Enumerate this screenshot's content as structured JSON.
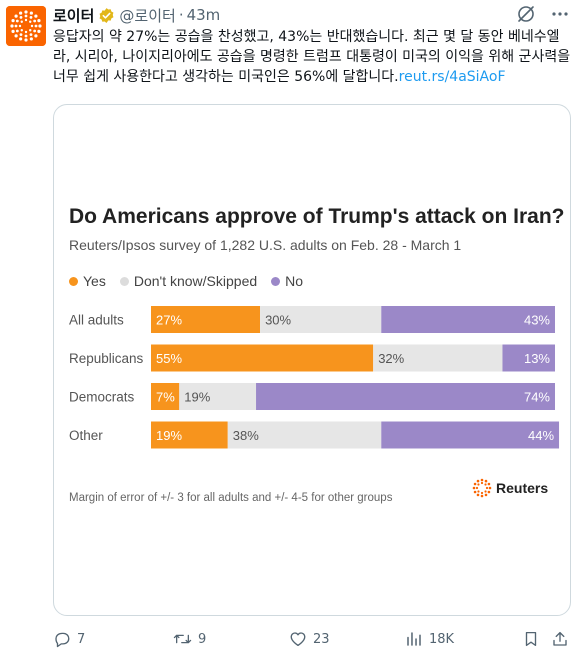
{
  "tweet": {
    "author_name": "로이터",
    "handle": "@로이터",
    "time": "43m",
    "text": "응답자의 약 27%는 공습을 찬성했고, 43%는 반대했습니다. 최근 몇 달 동안 베네수엘라, 시리아, 나이지리아에도 공습을 명령한 트럼프 대통령이 미국의 이익을 위해 군사력을 너무 쉽게 사용한다고 생각하는 미국인은 56%에 달합니다.",
    "link": "reut.rs/4aSiAoF"
  },
  "card": {
    "source_logo": "Reuters",
    "note": "Margin of error of +/- 3 for all adults and +/- 4-5 for other groups"
  },
  "colors": {
    "yes": "#f7941d",
    "dont_know": "#e6e6e6",
    "no": "#9b88c8",
    "link": "#1d9bf0",
    "verified": "#e2b719",
    "avatar": "#fa6400"
  },
  "chart_data": {
    "type": "bar",
    "orientation": "horizontal-stacked-100",
    "title": "Do Americans approve of Trump's attack on Iran?",
    "subtitle": "Reuters/Ipsos survey of 1,282 U.S. adults on Feb. 28 - March 1",
    "legend_position": "top-left",
    "categories": [
      "All adults",
      "Republicans",
      "Democrats",
      "Other"
    ],
    "series": [
      {
        "name": "Yes",
        "values": [
          27,
          55,
          7,
          19
        ]
      },
      {
        "name": "Don't know/Skipped",
        "values": [
          30,
          32,
          19,
          38
        ]
      },
      {
        "name": "No",
        "values": [
          43,
          13,
          74,
          44
        ]
      }
    ],
    "value_suffix": "%"
  },
  "actions": {
    "reply_count": "7",
    "retweet_count": "9",
    "like_count": "23",
    "view_count": "18K"
  },
  "icons": [
    "avatar-logo",
    "verified-icon",
    "grok-icon",
    "more-icon",
    "reply-icon",
    "retweet-icon",
    "like-icon",
    "views-icon",
    "bookmark-icon",
    "share-icon",
    "reuters-dot-logo"
  ]
}
